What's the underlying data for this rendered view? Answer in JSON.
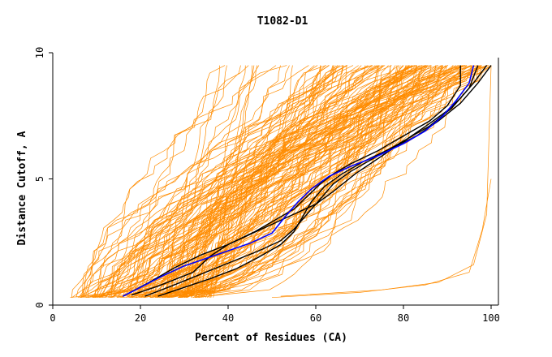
{
  "chart_data": {
    "type": "line",
    "title": "T1082-D1",
    "xlabel": "Percent of Residues (CA)",
    "ylabel": "Distance Cutoff, A",
    "xlim": [
      0,
      100
    ],
    "ylim": [
      0,
      10
    ],
    "xticks": [
      "0",
      "20",
      "40",
      "60",
      "80",
      "100"
    ],
    "yticks": [
      "0",
      "5",
      "10"
    ],
    "grid": false,
    "colors": {
      "models": "#ff8c00",
      "highlight": "#000000",
      "reference": "#0000ff",
      "axes": "#000000"
    },
    "highlight_series": [
      {
        "color": "#000000",
        "x": [
          16,
          22,
          28,
          34,
          40,
          46,
          51,
          55,
          58,
          61,
          64,
          68,
          74,
          80,
          86,
          90,
          93,
          93
        ],
        "y": [
          0.35,
          0.9,
          1.5,
          2.0,
          2.4,
          2.9,
          3.4,
          3.8,
          4.3,
          4.8,
          5.2,
          5.6,
          6.1,
          6.7,
          7.3,
          7.9,
          8.7,
          9.5
        ]
      },
      {
        "color": "#000000",
        "x": [
          21,
          27,
          32,
          37,
          42,
          47,
          52,
          55,
          58,
          61,
          64,
          68,
          74,
          80,
          86,
          91,
          95,
          97
        ],
        "y": [
          0.35,
          0.75,
          1.1,
          1.45,
          1.8,
          2.15,
          2.55,
          3.0,
          3.6,
          4.2,
          4.8,
          5.3,
          5.9,
          6.5,
          7.1,
          7.8,
          8.6,
          9.5
        ]
      },
      {
        "color": "#000000",
        "x": [
          24,
          30,
          36,
          42,
          47,
          52,
          55,
          57,
          59,
          62,
          66,
          71,
          77,
          83,
          88,
          93,
          97,
          100
        ],
        "y": [
          0.35,
          0.7,
          1.05,
          1.45,
          1.9,
          2.4,
          2.9,
          3.5,
          4.1,
          4.7,
          5.2,
          5.7,
          6.2,
          6.7,
          7.3,
          8.0,
          8.8,
          9.5
        ]
      },
      {
        "color": "#000000",
        "x": [
          18,
          24,
          32,
          36,
          40,
          45,
          50,
          55,
          60,
          64,
          69,
          75,
          81,
          86,
          90,
          93,
          96,
          99
        ],
        "y": [
          0.4,
          0.75,
          1.3,
          1.95,
          2.4,
          2.8,
          3.2,
          3.6,
          4.0,
          4.5,
          5.2,
          5.9,
          6.6,
          7.2,
          7.7,
          8.2,
          8.8,
          9.5
        ]
      }
    ],
    "reference_series": {
      "color": "#0000ff",
      "x": [
        16,
        20,
        25,
        30,
        35,
        40,
        45,
        50,
        53,
        56,
        59,
        63,
        68,
        74,
        80,
        85,
        89,
        92,
        95,
        96
      ],
      "y": [
        0.35,
        0.7,
        1.15,
        1.55,
        1.85,
        2.15,
        2.45,
        2.85,
        3.5,
        4.1,
        4.6,
        5.1,
        5.5,
        5.9,
        6.4,
        6.9,
        7.5,
        8.1,
        8.8,
        9.5
      ]
    }
  }
}
